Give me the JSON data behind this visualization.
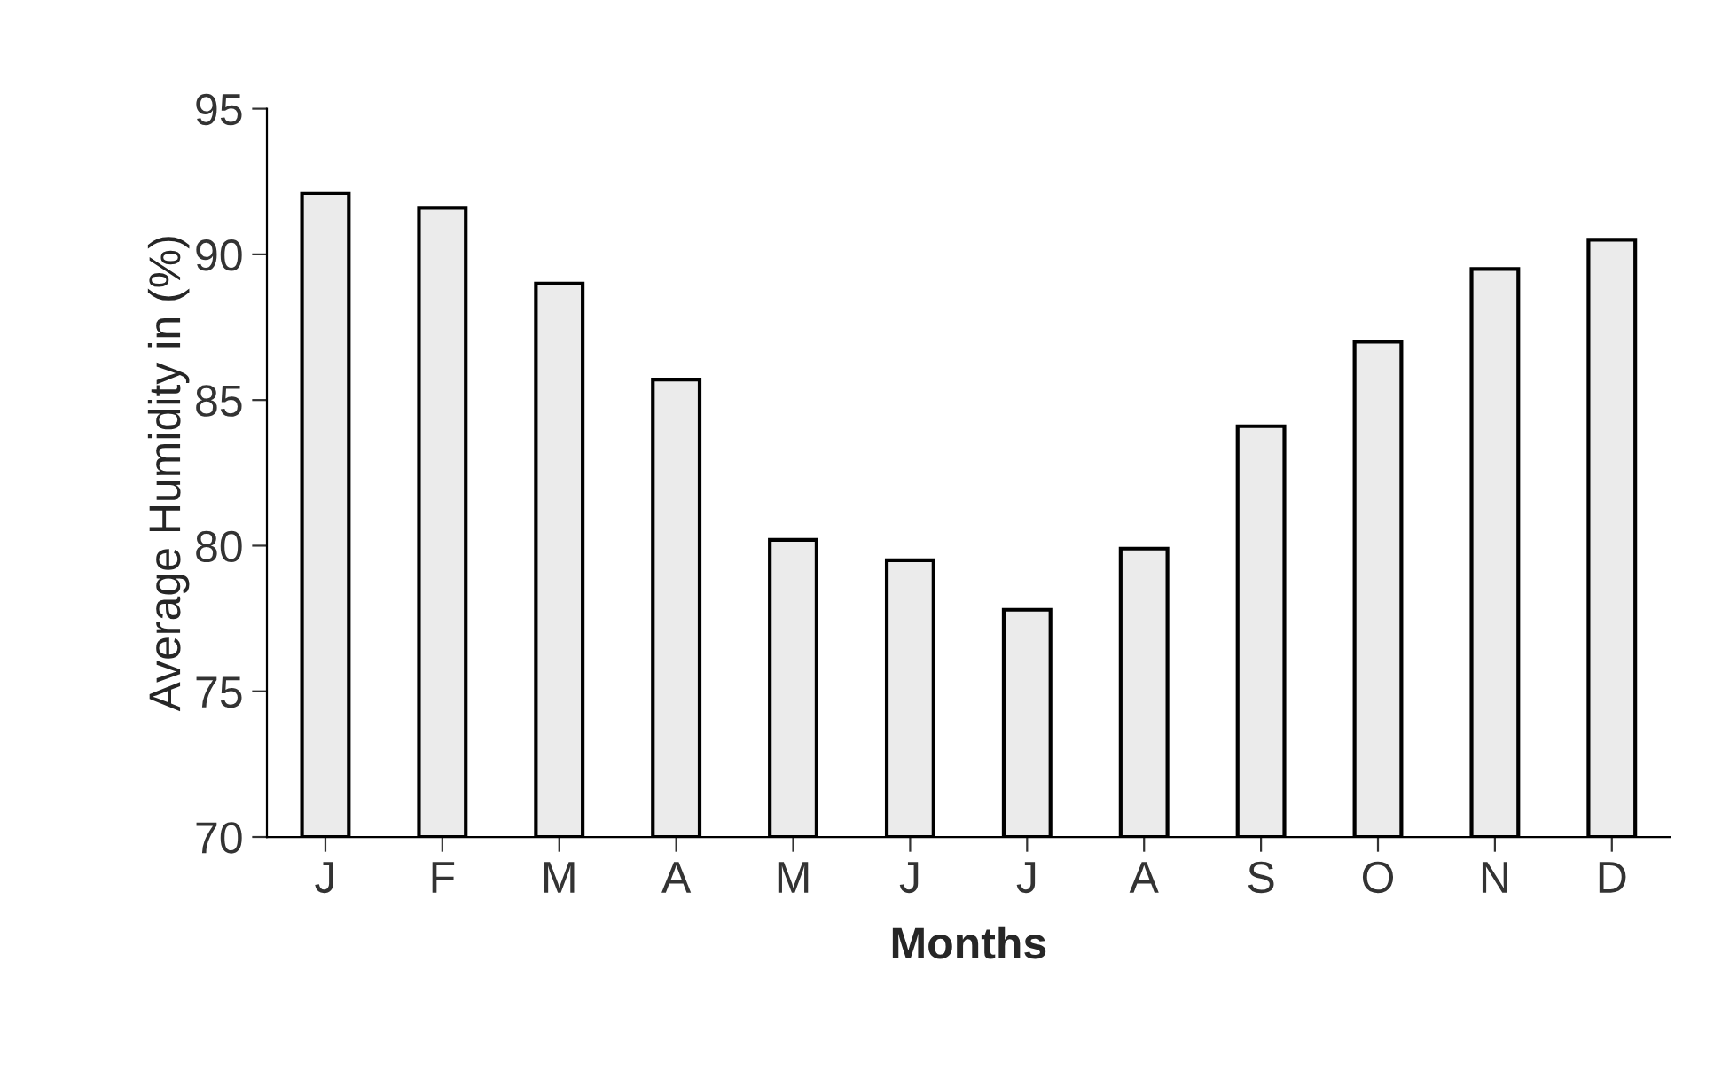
{
  "chart_data": {
    "type": "bar",
    "xlabel": "Months",
    "ylabel": "Average Humidity in (%)",
    "categories": [
      "J",
      "F",
      "M",
      "A",
      "M",
      "J",
      "J",
      "A",
      "S",
      "O",
      "N",
      "D"
    ],
    "values": [
      92.1,
      91.6,
      89.0,
      85.7,
      80.2,
      79.5,
      77.8,
      79.9,
      84.1,
      87.0,
      89.5,
      90.5
    ],
    "color": "#ebebeb",
    "ylim": [
      70,
      95
    ],
    "yticks": [
      70,
      75,
      80,
      85,
      90,
      95
    ],
    "grid": false
  }
}
